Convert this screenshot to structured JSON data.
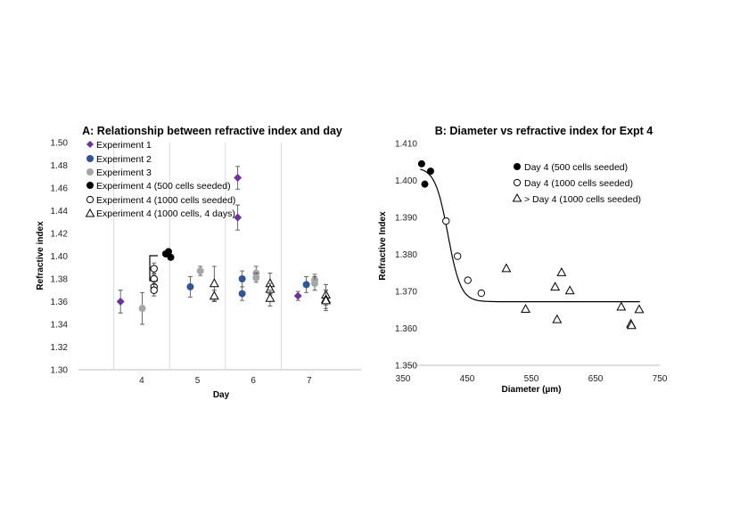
{
  "chart_data": [
    {
      "type": "scatter",
      "title": "A: Relationship between refractive index and day",
      "xlabel": "Day",
      "ylabel": "Refractive index",
      "categories": [
        "4",
        "5",
        "6",
        "7"
      ],
      "ylim": [
        1.3,
        1.5
      ],
      "yticks": [
        "1.30",
        "1.32",
        "1.34",
        "1.36",
        "1.38",
        "1.40",
        "1.42",
        "1.44",
        "1.46",
        "1.48",
        "1.50"
      ],
      "legend": [
        "Experiment 1",
        "Experiment 2",
        "Experiment 3",
        "Experiment 4 (500 cells seeded)",
        "Experiment 4 (1000 cells seeded)",
        "Experiment 4 (1000 cells, 4 days)"
      ],
      "series": [
        {
          "name": "Experiment 1",
          "marker": "diamond",
          "color": "#7030a0",
          "points": [
            {
              "x": 3.62,
              "y": 1.36,
              "err": 0.01
            },
            {
              "x": 5.72,
              "y": 1.469,
              "err": 0.01
            },
            {
              "x": 5.72,
              "y": 1.434,
              "err": 0.011
            },
            {
              "x": 6.8,
              "y": 1.365,
              "err": 0.004
            }
          ]
        },
        {
          "name": "Experiment 2",
          "marker": "circle",
          "color": "#2f5597",
          "points": [
            {
              "x": 4.87,
              "y": 1.373,
              "err": 0.009
            },
            {
              "x": 5.8,
              "y": 1.38,
              "err": 0.007
            },
            {
              "x": 5.8,
              "y": 1.367,
              "err": 0.006
            },
            {
              "x": 6.95,
              "y": 1.375,
              "err": 0.007
            }
          ]
        },
        {
          "name": "Experiment 3",
          "marker": "circle",
          "color": "#a6a6a6",
          "points": [
            {
              "x": 4.01,
              "y": 1.354,
              "err": 0.014
            },
            {
              "x": 5.05,
              "y": 1.387,
              "err": 0.004
            },
            {
              "x": 6.05,
              "y": 1.385,
              "err": 0.006
            },
            {
              "x": 6.05,
              "y": 1.381,
              "err": 0.004
            },
            {
              "x": 7.1,
              "y": 1.379,
              "err": 0.005
            },
            {
              "x": 7.1,
              "y": 1.376,
              "err": 0.006
            }
          ]
        },
        {
          "name": "Experiment 4 (500 cells seeded)",
          "marker": "circle",
          "color": "#000000",
          "points": [
            {
              "x": 4.43,
              "y": 1.402
            },
            {
              "x": 4.48,
              "y": 1.404
            },
            {
              "x": 4.52,
              "y": 1.399
            }
          ]
        },
        {
          "name": "Experiment 4 (1000 cells seeded)",
          "marker": "circle-open",
          "color": "#000000",
          "points": [
            {
              "x": 4.22,
              "y": 1.389,
              "err": 0.005
            },
            {
              "x": 4.22,
              "y": 1.38,
              "err": 0.005
            },
            {
              "x": 4.22,
              "y": 1.373,
              "err": 0.005
            },
            {
              "x": 4.22,
              "y": 1.37,
              "err": 0.005
            }
          ]
        },
        {
          "name": "Experiment 4 (1000 cells, 4 days)",
          "marker": "triangle-open",
          "color": "#000000",
          "points": [
            {
              "x": 5.3,
              "y": 1.376,
              "err": 0.015
            },
            {
              "x": 5.3,
              "y": 1.365,
              "err": 0.005
            },
            {
              "x": 6.3,
              "y": 1.376,
              "err": 0.009
            },
            {
              "x": 6.3,
              "y": 1.371,
              "err": 0.005
            },
            {
              "x": 6.3,
              "y": 1.363,
              "err": 0.007
            },
            {
              "x": 7.3,
              "y": 1.366,
              "err": 0.009
            },
            {
              "x": 7.3,
              "y": 1.362,
              "err": 0.008
            },
            {
              "x": 7.3,
              "y": 1.361,
              "err": 0.009
            }
          ]
        }
      ],
      "annotations": [
        {
          "type": "bracket",
          "y_top": 1.402,
          "y_bottom": 1.379
        }
      ],
      "grid": "vertical separators between days"
    },
    {
      "type": "scatter",
      "title": "B: Diameter vs refractive index for Expt 4",
      "xlabel": "Diameter (µm)",
      "ylabel": "Refractive Index",
      "xlim": [
        350,
        750
      ],
      "ylim": [
        1.35,
        1.41
      ],
      "xticks": [
        "350",
        "450",
        "550",
        "650",
        "750"
      ],
      "yticks": [
        "1.350",
        "1.360",
        "1.370",
        "1.380",
        "1.390",
        "1.400",
        "1.410"
      ],
      "legend": [
        "Day 4 (500 cells seeded)",
        "Day 4 (1000 cells seeded)",
        "> Day 4 (1000 cells seeded)"
      ],
      "series": [
        {
          "name": "Day 4 (500 cells seeded)",
          "marker": "circle",
          "color": "#000000",
          "points": [
            {
              "x": 379,
              "y": 1.4045
            },
            {
              "x": 384,
              "y": 1.399
            },
            {
              "x": 393,
              "y": 1.4025
            }
          ]
        },
        {
          "name": "Day 4 (1000 cells seeded)",
          "marker": "circle-open",
          "color": "#000000",
          "points": [
            {
              "x": 417,
              "y": 1.389
            },
            {
              "x": 435,
              "y": 1.3795
            },
            {
              "x": 451,
              "y": 1.373
            },
            {
              "x": 472,
              "y": 1.3695
            }
          ]
        },
        {
          "name": "> Day 4 (1000 cells seeded)",
          "marker": "triangle-open",
          "color": "#000000",
          "points": [
            {
              "x": 511,
              "y": 1.3762
            },
            {
              "x": 541,
              "y": 1.3652
            },
            {
              "x": 587,
              "y": 1.3712
            },
            {
              "x": 597,
              "y": 1.3751
            },
            {
              "x": 590,
              "y": 1.3624
            },
            {
              "x": 610,
              "y": 1.3702
            },
            {
              "x": 690,
              "y": 1.3658
            },
            {
              "x": 705,
              "y": 1.3612
            },
            {
              "x": 706,
              "y": 1.3608
            },
            {
              "x": 718,
              "y": 1.3651
            }
          ]
        }
      ],
      "fit": {
        "type": "sigmoid",
        "x_range": [
          377,
          720
        ],
        "bottom": 1.3672,
        "top": 1.4035,
        "x50": 420,
        "slope": 10
      }
    }
  ]
}
